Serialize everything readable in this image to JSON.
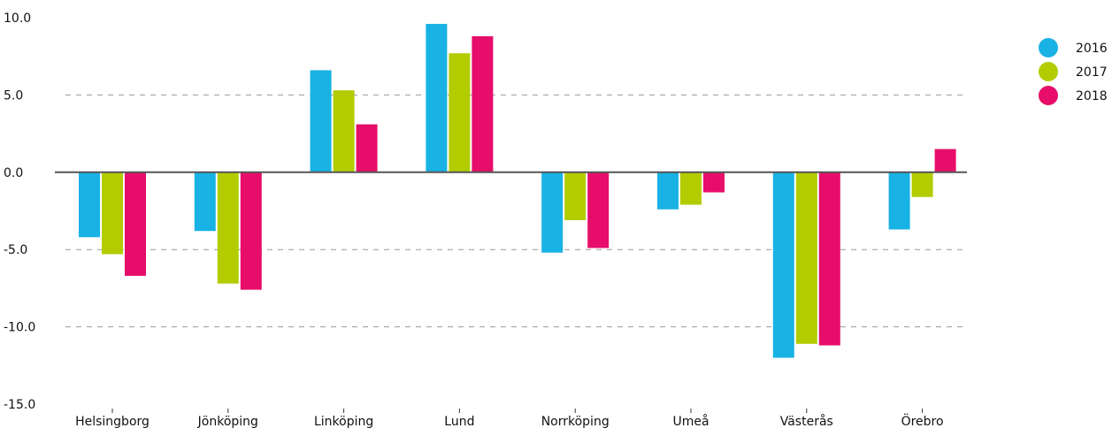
{
  "chart_data": {
    "type": "bar",
    "categories": [
      "Helsingborg",
      "Jönköping",
      "Linköping",
      "Lund",
      "Norrköping",
      "Umeå",
      "Västerås",
      "Örebro"
    ],
    "series": [
      {
        "name": "2016",
        "color": "#19b2e4",
        "values": [
          -4.2,
          -3.8,
          6.6,
          9.6,
          -5.2,
          -2.4,
          -12.0,
          -3.7
        ]
      },
      {
        "name": "2017",
        "color": "#b3cc00",
        "values": [
          -5.3,
          -7.2,
          5.3,
          7.7,
          -3.1,
          -2.1,
          -11.1,
          -1.6
        ]
      },
      {
        "name": "2018",
        "color": "#e60e6a",
        "values": [
          -6.7,
          -7.6,
          3.1,
          8.8,
          -4.9,
          -1.3,
          -11.2,
          1.5
        ]
      }
    ],
    "y_ticks": [
      "10.0",
      "5.0",
      "0.0",
      "-5.0",
      "-10.0",
      "-15.0"
    ],
    "ylim": [
      -15,
      10
    ],
    "grid": "dashed horizontal",
    "legend_position": "top-right",
    "title": "",
    "xlabel": "",
    "ylabel": ""
  }
}
